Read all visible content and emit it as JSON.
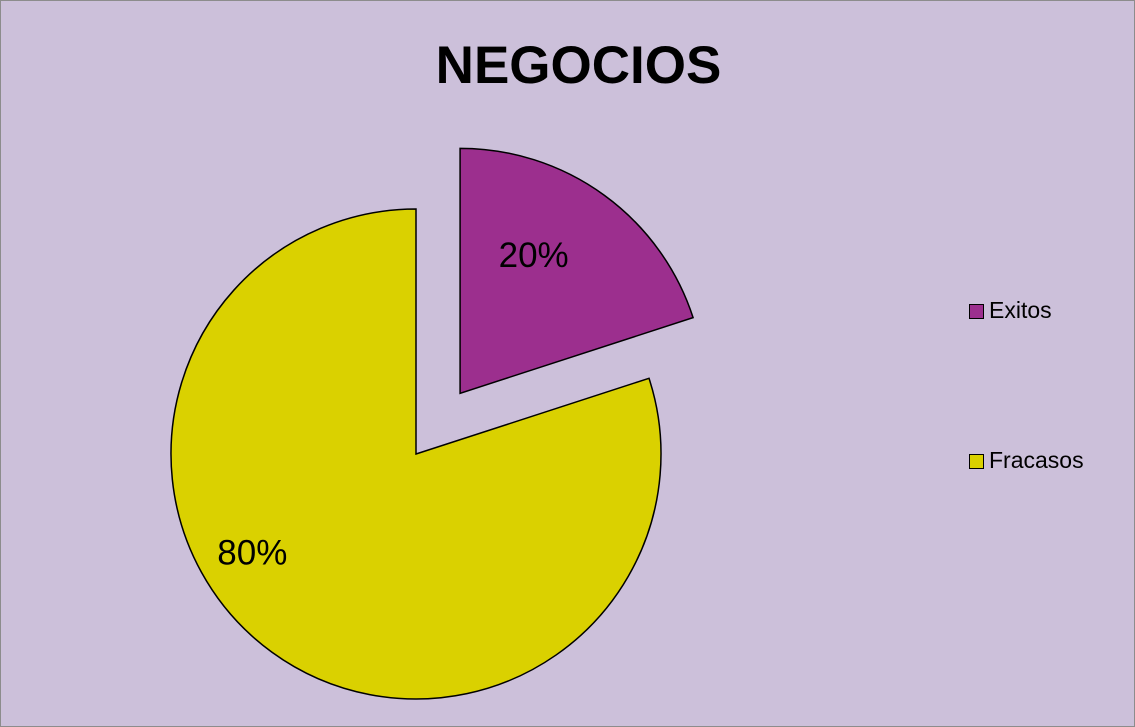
{
  "chart_data": {
    "type": "pie",
    "title": "NEGOCIOS",
    "categories": [
      "Exitos",
      "Fracasos"
    ],
    "values": [
      20,
      80
    ],
    "data_labels": [
      "20%",
      "80%"
    ],
    "colors": [
      "#9c2f8e",
      "#dad100"
    ],
    "exploded": "Exitos",
    "legend_position": "right"
  }
}
